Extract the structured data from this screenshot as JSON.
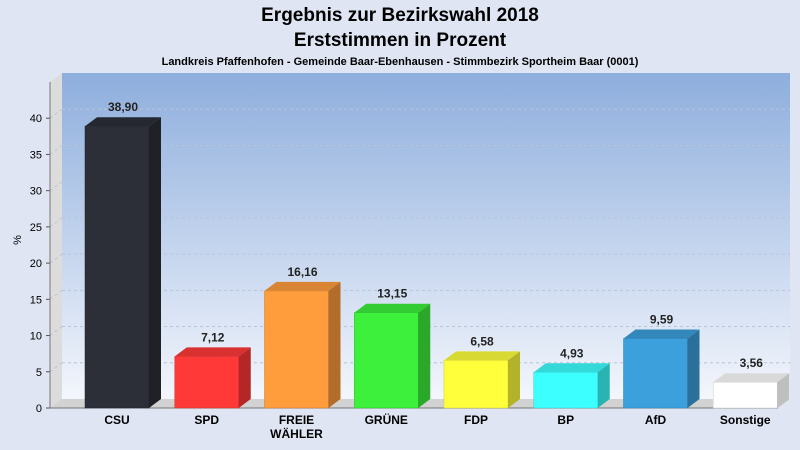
{
  "chart_data": {
    "type": "bar",
    "title": "Ergebnis zur Bezirkswahl 2018",
    "subtitle": "Erststimmen in Prozent",
    "caption": "Landkreis Pfaffenhofen - Gemeinde Baar-Ebenhausen - Stimmbezirk Sportheim Baar (0001)",
    "ylabel": "%",
    "ylim": [
      0,
      45
    ],
    "yticks": [
      0,
      5,
      10,
      15,
      20,
      25,
      30,
      35,
      40
    ],
    "grid": true,
    "categories": [
      "CSU",
      "SPD",
      "FREIE WÄHLER",
      "GRÜNE",
      "FDP",
      "BP",
      "AfD",
      "Sonstige"
    ],
    "category_lines": [
      [
        "CSU"
      ],
      [
        "SPD"
      ],
      [
        "FREIE",
        "WÄHLER"
      ],
      [
        "GRÜNE"
      ],
      [
        "FDP"
      ],
      [
        "BP"
      ],
      [
        "AfD"
      ],
      [
        "Sonstige"
      ]
    ],
    "values": [
      38.9,
      7.12,
      16.16,
      13.15,
      6.58,
      4.93,
      9.59,
      3.56
    ],
    "value_labels": [
      "38,90",
      "7,12",
      "16,16",
      "13,15",
      "6,58",
      "4,93",
      "9,59",
      "3,56"
    ],
    "colors": [
      "#2c2f38",
      "#ff3838",
      "#ff9c3c",
      "#3cf03c",
      "#ffff3c",
      "#3cffff",
      "#3ca0dc",
      "#ffffff"
    ]
  }
}
